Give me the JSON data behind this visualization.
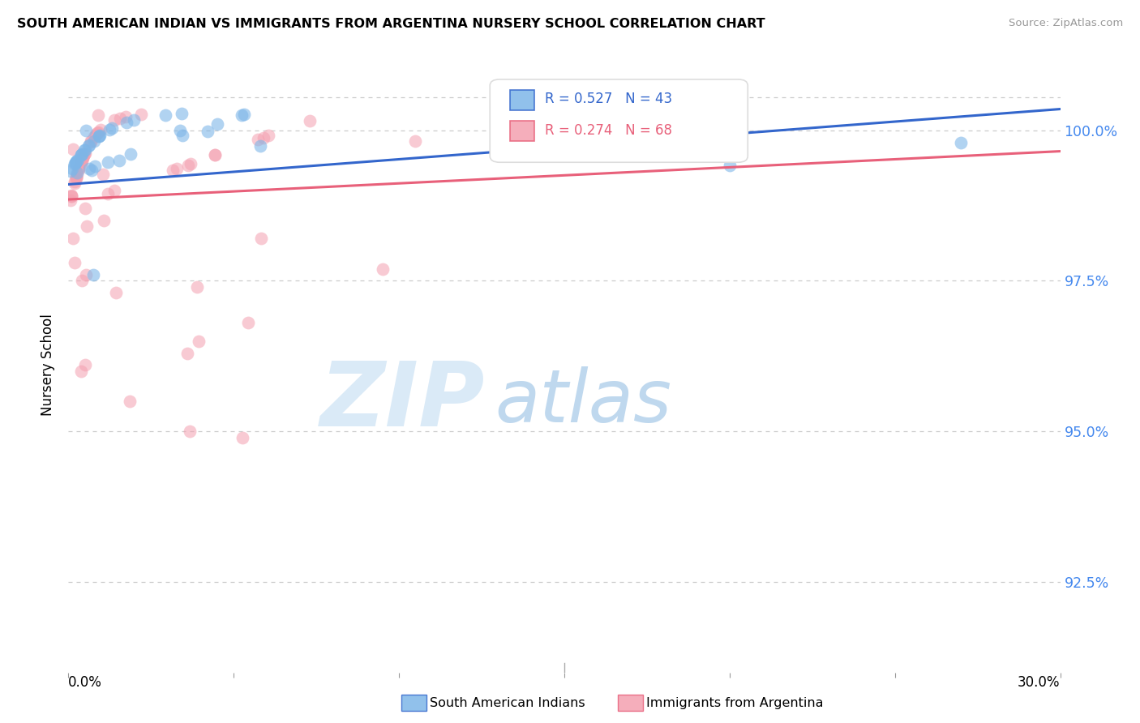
{
  "title": "SOUTH AMERICAN INDIAN VS IMMIGRANTS FROM ARGENTINA NURSERY SCHOOL CORRELATION CHART",
  "source": "Source: ZipAtlas.com",
  "ylabel": "Nursery School",
  "legend_blue_label": "South American Indians",
  "legend_pink_label": "Immigrants from Argentina",
  "r_blue": 0.527,
  "n_blue": 43,
  "r_pink": 0.274,
  "n_pink": 68,
  "blue_color": "#7EB6E8",
  "pink_color": "#F4A0B0",
  "blue_line_color": "#3366CC",
  "pink_line_color": "#E8607A",
  "xlim": [
    0,
    30
  ],
  "ylim": [
    91.0,
    101.2
  ],
  "ytick_vals": [
    92.5,
    95.0,
    97.5,
    100.0
  ],
  "xtick_vals": [
    0,
    5,
    10,
    15,
    20,
    25,
    30
  ],
  "blue_line_x0": 0,
  "blue_line_x1": 30,
  "blue_line_y0": 99.1,
  "blue_line_y1": 100.35,
  "pink_line_x0": 0,
  "pink_line_x1": 30,
  "pink_line_y0": 98.85,
  "pink_line_y1": 99.65
}
